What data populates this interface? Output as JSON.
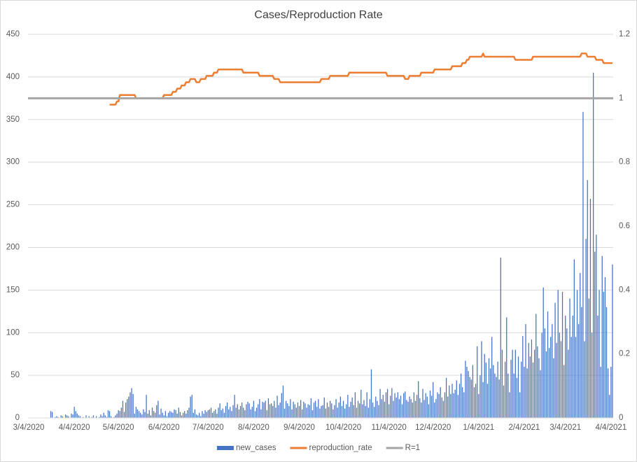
{
  "chart_data": {
    "type": "bar_line",
    "title": "Cases/Reproduction Rate",
    "ylim": [
      0,
      450
    ],
    "yticks": [
      0,
      50,
      100,
      150,
      200,
      250,
      300,
      350,
      400,
      450
    ],
    "y2lim": [
      0,
      1.2
    ],
    "y2ticks": [
      0,
      0.2,
      0.4,
      0.6,
      0.8,
      1,
      1.2
    ],
    "grid": true,
    "legend": "bottom",
    "categories": [
      "3/4/2020",
      null,
      null,
      null,
      null,
      null,
      null,
      null,
      null,
      null,
      null,
      null,
      null,
      null,
      null,
      null,
      null,
      null,
      null,
      null,
      null,
      null,
      null,
      null,
      null,
      null,
      null,
      null,
      null,
      null,
      null,
      "4/4/2020",
      null,
      null,
      null,
      null,
      null,
      null,
      null,
      null,
      null,
      null,
      null,
      null,
      null,
      null,
      null,
      null,
      null,
      null,
      null,
      null,
      null,
      null,
      null,
      null,
      null,
      null,
      null,
      null,
      null,
      "5/4/2020",
      null,
      null,
      null,
      null,
      null,
      null,
      null,
      null,
      null,
      null,
      null,
      null,
      null,
      null,
      null,
      null,
      null,
      null,
      null,
      null,
      null,
      null,
      null,
      null,
      null,
      null,
      null,
      null,
      null,
      null,
      "6/4/2020",
      null,
      null,
      null,
      null,
      null,
      null,
      null,
      null,
      null,
      null,
      null,
      null,
      null,
      null,
      null,
      null,
      null,
      null,
      null,
      null,
      null,
      null,
      null,
      null,
      null,
      null,
      null,
      null,
      null,
      "7/4/2020",
      null,
      null,
      null,
      null,
      null,
      null,
      null,
      null,
      null,
      null,
      null,
      null,
      null,
      null,
      null,
      null,
      null,
      null,
      null,
      null,
      null,
      null,
      null,
      null,
      null,
      null,
      null,
      null,
      null,
      null,
      "8/4/2020",
      null,
      null,
      null,
      null,
      null,
      null,
      null,
      null,
      null,
      null,
      null,
      null,
      null,
      null,
      null,
      null,
      null,
      null,
      null,
      null,
      null,
      null,
      null,
      null,
      null,
      null,
      null,
      null,
      null,
      null,
      "9/4/2020",
      null,
      null,
      null,
      null,
      null,
      null,
      null,
      null,
      null,
      null,
      null,
      null,
      null,
      null,
      null,
      null,
      null,
      null,
      null,
      null,
      null,
      null,
      null,
      null,
      null,
      null,
      null,
      null,
      null,
      "10/4/2020",
      null,
      null,
      null,
      null,
      null,
      null,
      null,
      null,
      null,
      null,
      null,
      null,
      null,
      null,
      null,
      null,
      null,
      null,
      null,
      null,
      null,
      null,
      null,
      null,
      null,
      null,
      null,
      null,
      null,
      null,
      "11/4/2020",
      null,
      null,
      null,
      null,
      null,
      null,
      null,
      null,
      null,
      null,
      null,
      null,
      null,
      null,
      null,
      null,
      null,
      null,
      null,
      null,
      null,
      null,
      null,
      null,
      null,
      null,
      null,
      null,
      null,
      "12/4/2020",
      null,
      null,
      null,
      null,
      null,
      null,
      null,
      null,
      null,
      null,
      null,
      null,
      null,
      null,
      null,
      null,
      null,
      null,
      null,
      null,
      null,
      null,
      null,
      null,
      null,
      null,
      null,
      null,
      null,
      null,
      "1/4/2021",
      null,
      null,
      null,
      null,
      null,
      null,
      null,
      null,
      null,
      null,
      null,
      null,
      null,
      null,
      null,
      null,
      null,
      null,
      null,
      null,
      null,
      null,
      null,
      null,
      null,
      null,
      null,
      null,
      null,
      null,
      "2/4/2021",
      null,
      null,
      null,
      null,
      null,
      null,
      null,
      null,
      null,
      null,
      null,
      null,
      null,
      null,
      null,
      null,
      null,
      null,
      null,
      null,
      null,
      null,
      null,
      null,
      null,
      null,
      null,
      "3/4/2021",
      null,
      null,
      null,
      null,
      null,
      null,
      null,
      null,
      null,
      null,
      null,
      null,
      null,
      null,
      null,
      null,
      null,
      null,
      null,
      null,
      null,
      null,
      null,
      null,
      null,
      null,
      null,
      null,
      null,
      null,
      "4/4/2021",
      null
    ],
    "series": [
      {
        "name": "new_cases",
        "color": "#4472c4",
        "kind": "bar",
        "values": [
          0,
          0,
          0,
          0,
          0,
          0,
          0,
          0,
          0,
          0,
          0,
          0,
          0,
          0,
          0,
          8,
          7,
          0,
          1,
          2,
          1,
          0,
          3,
          2,
          0,
          4,
          3,
          2,
          0,
          5,
          4,
          13,
          8,
          5,
          3,
          2,
          0,
          1,
          0,
          3,
          0,
          2,
          0,
          1,
          3,
          0,
          2,
          0,
          1,
          4,
          2,
          6,
          3,
          1,
          9,
          8,
          2,
          0,
          1,
          3,
          5,
          9,
          8,
          12,
          20,
          7,
          18,
          22,
          25,
          30,
          35,
          28,
          5,
          13,
          10,
          8,
          6,
          4,
          10,
          7,
          27,
          5,
          9,
          3,
          12,
          8,
          6,
          15,
          20,
          4,
          11,
          6,
          3,
          8,
          2,
          6,
          8,
          7,
          6,
          10,
          9,
          5,
          12,
          7,
          3,
          6,
          8,
          5,
          9,
          12,
          25,
          27,
          6,
          10,
          4,
          3,
          6,
          2,
          8,
          5,
          9,
          7,
          9,
          10,
          12,
          6,
          8,
          10,
          5,
          12,
          17,
          9,
          11,
          6,
          14,
          18,
          10,
          13,
          8,
          15,
          27,
          12,
          16,
          10,
          14,
          18,
          12,
          9,
          16,
          19,
          17,
          10,
          13,
          20,
          8,
          12,
          16,
          22,
          10,
          19,
          18,
          20,
          9,
          23,
          16,
          17,
          14,
          20,
          12,
          26,
          15,
          18,
          29,
          38,
          11,
          20,
          17,
          14,
          22,
          10,
          19,
          16,
          12,
          18,
          14,
          21,
          10,
          19,
          17,
          12,
          16,
          15,
          23,
          9,
          18,
          20,
          13,
          22,
          11,
          14,
          15,
          24,
          11,
          18,
          13,
          20,
          17,
          10,
          15,
          22,
          12,
          18,
          25,
          14,
          20,
          11,
          16,
          27,
          13,
          19,
          24,
          15,
          30,
          12,
          20,
          17,
          33,
          16,
          21,
          14,
          30,
          12,
          22,
          57,
          18,
          13,
          25,
          20,
          15,
          34,
          22,
          27,
          19,
          30,
          34,
          16,
          26,
          35,
          20,
          29,
          24,
          30,
          22,
          26,
          16,
          29,
          31,
          21,
          19,
          25,
          22,
          18,
          30,
          20,
          27,
          43,
          23,
          18,
          34,
          21,
          29,
          25,
          16,
          32,
          26,
          42,
          18,
          22,
          30,
          28,
          36,
          24,
          20,
          30,
          47,
          25,
          38,
          28,
          40,
          29,
          33,
          44,
          27,
          40,
          52,
          36,
          30,
          67,
          60,
          55,
          48,
          45,
          62,
          36,
          40,
          84,
          28,
          50,
          90,
          42,
          75,
          65,
          40,
          70,
          58,
          95,
          62,
          52,
          48,
          66,
          45,
          188,
          80,
          38,
          66,
          118,
          52,
          30,
          68,
          80,
          52,
          80,
          47,
          72,
          30,
          66,
          96,
          60,
          110,
          58,
          88,
          72,
          92,
          65,
          80,
          122,
          84,
          70,
          56,
          100,
          153,
          105,
          78,
          125,
          82,
          95,
          110,
          70,
          135,
          88,
          150,
          100,
          90,
          148,
          62,
          120,
          105,
          80,
          140,
          95,
          120,
          186,
          95,
          150,
          110,
          170,
          130,
          359,
          90,
          210,
          279,
          140,
          257,
          100,
          405,
          195,
          215,
          120,
          150,
          60,
          190,
          148,
          165,
          130,
          58,
          27,
          60,
          180
        ]
      },
      {
        "name": "reproduction_rate",
        "color": "#ed7d31",
        "kind": "line",
        "axis": "y2",
        "values": [
          null,
          null,
          null,
          null,
          null,
          null,
          null,
          null,
          null,
          null,
          null,
          null,
          null,
          null,
          null,
          null,
          null,
          null,
          null,
          null,
          null,
          null,
          null,
          null,
          null,
          null,
          null,
          null,
          null,
          null,
          null,
          null,
          null,
          null,
          null,
          null,
          null,
          null,
          null,
          null,
          null,
          null,
          null,
          null,
          null,
          null,
          null,
          null,
          null,
          null,
          null,
          null,
          null,
          null,
          null,
          0.98,
          0.98,
          0.98,
          0.98,
          0.98,
          0.99,
          0.99,
          1.01,
          1.01,
          1.01,
          1.01,
          1.01,
          1.01,
          1.01,
          1.01,
          1.01,
          1.01,
          1.01,
          1,
          1,
          1,
          1,
          1,
          1,
          1,
          1,
          1,
          1,
          1,
          1,
          1,
          1,
          1,
          1,
          1,
          1,
          1,
          1.01,
          1.01,
          1.01,
          1.01,
          1.01,
          1.01,
          1.02,
          1.02,
          1.02,
          1.03,
          1.03,
          1.03,
          1.04,
          1.04,
          1.04,
          1.05,
          1.05,
          1.05,
          1.06,
          1.06,
          1.06,
          1.06,
          1.05,
          1.05,
          1.05,
          1.06,
          1.06,
          1.06,
          1.06,
          1.07,
          1.07,
          1.07,
          1.07,
          1.07,
          1.08,
          1.08,
          1.08,
          1.09,
          1.09,
          1.09,
          1.09,
          1.09,
          1.09,
          1.09,
          1.09,
          1.09,
          1.09,
          1.09,
          1.09,
          1.09,
          1.09,
          1.09,
          1.09,
          1.09,
          1.08,
          1.08,
          1.08,
          1.08,
          1.08,
          1.08,
          1.08,
          1.08,
          1.08,
          1.08,
          1.08,
          1.07,
          1.07,
          1.07,
          1.07,
          1.07,
          1.07,
          1.07,
          1.07,
          1.07,
          1.07,
          1.06,
          1.06,
          1.06,
          1.06,
          1.05,
          1.05,
          1.05,
          1.05,
          1.05,
          1.05,
          1.05,
          1.05,
          1.05,
          1.05,
          1.05,
          1.05,
          1.05,
          1.05,
          1.05,
          1.05,
          1.05,
          1.05,
          1.05,
          1.05,
          1.05,
          1.05,
          1.05,
          1.05,
          1.05,
          1.05,
          1.05,
          1.05,
          1.06,
          1.06,
          1.06,
          1.06,
          1.06,
          1.06,
          1.07,
          1.07,
          1.07,
          1.07,
          1.07,
          1.07,
          1.07,
          1.07,
          1.07,
          1.07,
          1.07,
          1.07,
          1.07,
          1.08,
          1.08,
          1.08,
          1.08,
          1.08,
          1.08,
          1.08,
          1.08,
          1.08,
          1.08,
          1.08,
          1.08,
          1.08,
          1.08,
          1.08,
          1.08,
          1.08,
          1.08,
          1.08,
          1.08,
          1.08,
          1.08,
          1.08,
          1.08,
          1.08,
          1.08,
          1.07,
          1.07,
          1.07,
          1.07,
          1.07,
          1.07,
          1.07,
          1.07,
          1.07,
          1.07,
          1.07,
          1.07,
          1.06,
          1.06,
          1.06,
          1.07,
          1.07,
          1.07,
          1.07,
          1.07,
          1.07,
          1.07,
          1.07,
          1.08,
          1.08,
          1.08,
          1.08,
          1.08,
          1.08,
          1.08,
          1.08,
          1.08,
          1.09,
          1.09,
          1.09,
          1.09,
          1.09,
          1.09,
          1.09,
          1.09,
          1.09,
          1.09,
          1.09,
          1.09,
          1.1,
          1.1,
          1.1,
          1.1,
          1.1,
          1.1,
          1.1,
          1.11,
          1.11,
          1.11,
          1.12,
          1.12,
          1.13,
          1.13,
          1.13,
          1.13,
          1.13,
          1.13,
          1.13,
          1.13,
          1.13,
          1.14,
          1.13,
          1.13,
          1.13,
          1.13,
          1.13,
          1.13,
          1.13,
          1.13,
          1.13,
          1.13,
          1.13,
          1.13,
          1.13,
          1.13,
          1.13,
          1.13,
          1.13,
          1.13,
          1.13,
          1.13,
          1.13,
          1.12,
          1.12,
          1.12,
          1.12,
          1.12,
          1.12,
          1.12,
          1.12,
          1.12,
          1.12,
          1.12,
          1.12,
          1.13,
          1.13,
          1.13,
          1.13,
          1.13,
          1.13,
          1.13,
          1.13,
          1.13,
          1.13,
          1.13,
          1.13,
          1.13,
          1.13,
          1.13,
          1.13,
          1.13,
          1.13,
          1.13,
          1.13,
          1.13,
          1.13,
          1.13,
          1.13,
          1.13,
          1.13,
          1.13,
          1.13,
          1.13,
          1.13,
          1.13,
          1.13,
          1.13,
          1.14,
          1.14,
          1.14,
          1.14,
          1.13,
          1.13,
          1.13,
          1.13,
          1.13,
          1.13,
          1.12,
          1.12,
          1.12,
          1.12,
          1.12,
          1.11,
          1.11,
          1.11,
          1.11,
          1.11,
          1.11,
          1.11
        ]
      },
      {
        "name": "R=1",
        "color": "#a5a5a5",
        "kind": "hline",
        "axis": "y2",
        "value": 1
      }
    ]
  }
}
